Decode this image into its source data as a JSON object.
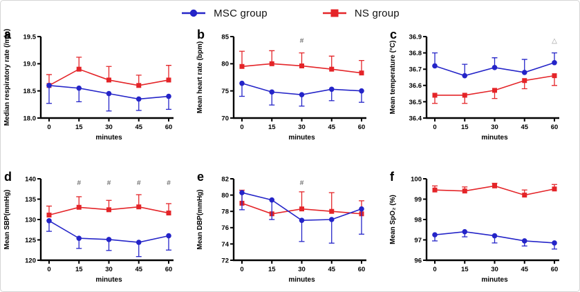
{
  "figure": {
    "background": "#ffffff",
    "border_color": "#d4d4d4"
  },
  "legend": {
    "items": [
      {
        "label": "MSC group",
        "color": "#2424c8",
        "marker": "circle"
      },
      {
        "label": "NS group",
        "color": "#e42428",
        "marker": "square"
      }
    ]
  },
  "chart_data": [
    {
      "panel_label": "a",
      "type": "line",
      "x": [
        0,
        15,
        30,
        45,
        60
      ],
      "xlabel": "minutes",
      "ylabel": "Median respiratory rate (/min)",
      "ylim": [
        18.0,
        19.5
      ],
      "yticks": [
        18.0,
        18.5,
        19.0,
        19.5
      ],
      "ytick_decimals": 1,
      "series": [
        {
          "name": "MSC group",
          "color": "#2424c8",
          "marker": "circle",
          "values": [
            18.6,
            18.55,
            18.45,
            18.35,
            18.4
          ],
          "err_lower": [
            18.27,
            18.3,
            18.13,
            18.14,
            18.16
          ]
        },
        {
          "name": "NS group",
          "color": "#e42428",
          "marker": "square",
          "values": [
            18.6,
            18.9,
            18.7,
            18.6,
            18.7
          ],
          "err_upper": [
            18.8,
            19.12,
            18.95,
            18.79,
            18.97
          ]
        }
      ],
      "annotations": []
    },
    {
      "panel_label": "b",
      "type": "line",
      "x": [
        0,
        15,
        30,
        45,
        60
      ],
      "xlabel": "minutes",
      "ylabel": "Mean heart rate (bpm)",
      "ylim": [
        70,
        85
      ],
      "yticks": [
        70,
        75,
        80,
        85
      ],
      "ytick_decimals": 0,
      "series": [
        {
          "name": "MSC group",
          "color": "#2424c8",
          "marker": "circle",
          "values": [
            76.4,
            74.8,
            74.3,
            75.3,
            75.0
          ],
          "err_lower": [
            74.0,
            72.4,
            72.2,
            73.2,
            72.9
          ]
        },
        {
          "name": "NS group",
          "color": "#e42428",
          "marker": "square",
          "values": [
            79.5,
            80.0,
            79.6,
            79.0,
            78.3
          ],
          "err_upper": [
            82.3,
            82.4,
            82.0,
            81.4,
            80.6
          ]
        }
      ],
      "annotations": [
        {
          "text": "#",
          "x": 30,
          "color": "#555555"
        }
      ]
    },
    {
      "panel_label": "c",
      "type": "line",
      "x": [
        0,
        15,
        30,
        45,
        60
      ],
      "xlabel": "minutes",
      "ylabel": "Mean temperature (°C)",
      "ylim": [
        36.4,
        36.9
      ],
      "yticks": [
        36.4,
        36.5,
        36.6,
        36.7,
        36.8,
        36.9
      ],
      "ytick_decimals": 1,
      "series": [
        {
          "name": "MSC group",
          "color": "#2424c8",
          "marker": "circle",
          "values": [
            36.72,
            36.66,
            36.71,
            36.68,
            36.74
          ],
          "err_upper": [
            36.8,
            36.73,
            36.77,
            36.76,
            36.8
          ]
        },
        {
          "name": "NS group",
          "color": "#e42428",
          "marker": "square",
          "values": [
            36.54,
            36.54,
            36.57,
            36.63,
            36.66
          ],
          "err_lower": [
            36.49,
            36.49,
            36.52,
            36.58,
            36.6
          ]
        }
      ],
      "annotations": [
        {
          "text": "△",
          "x": 60,
          "color": "#9a9a9a"
        }
      ]
    },
    {
      "panel_label": "d",
      "type": "line",
      "x": [
        0,
        15,
        30,
        45,
        60
      ],
      "xlabel": "minutes",
      "ylabel": "Mean SBP(mmHg)",
      "ylim": [
        120,
        140
      ],
      "yticks": [
        120,
        125,
        130,
        135,
        140
      ],
      "ytick_decimals": 0,
      "series": [
        {
          "name": "MSC group",
          "color": "#2424c8",
          "marker": "circle",
          "values": [
            129.7,
            125.4,
            125.1,
            124.4,
            126.0
          ],
          "err_lower": [
            127.1,
            122.9,
            122.4,
            120.9,
            122.5
          ]
        },
        {
          "name": "NS group",
          "color": "#e42428",
          "marker": "square",
          "values": [
            131.1,
            133.0,
            132.4,
            133.1,
            131.6
          ],
          "err_upper": [
            133.3,
            135.6,
            134.7,
            136.1,
            133.9
          ]
        }
      ],
      "annotations": [
        {
          "text": "#",
          "x": 15,
          "color": "#555555"
        },
        {
          "text": "#",
          "x": 30,
          "color": "#555555"
        },
        {
          "text": "#",
          "x": 45,
          "color": "#555555"
        },
        {
          "text": "#",
          "x": 60,
          "color": "#555555"
        }
      ]
    },
    {
      "panel_label": "e",
      "type": "line",
      "x": [
        0,
        15,
        30,
        45,
        60
      ],
      "xlabel": "minutes",
      "ylabel": "Mean DBP(mmHg)",
      "ylim": [
        72,
        82
      ],
      "yticks": [
        72,
        74,
        76,
        78,
        80,
        82
      ],
      "ytick_decimals": 0,
      "series": [
        {
          "name": "MSC group",
          "color": "#2424c8",
          "marker": "circle",
          "values": [
            80.3,
            79.4,
            76.9,
            77.0,
            78.3
          ],
          "err_lower": [
            78.2,
            77.0,
            74.3,
            74.1,
            75.2
          ]
        },
        {
          "name": "NS group",
          "color": "#e42428",
          "marker": "square",
          "values": [
            79.0,
            77.7,
            78.3,
            78.0,
            77.7
          ],
          "err_upper": [
            80.6,
            77.7,
            80.4,
            80.3,
            79.3
          ]
        }
      ],
      "annotations": [
        {
          "text": "#",
          "x": 30,
          "color": "#555555"
        }
      ]
    },
    {
      "panel_label": "f",
      "type": "line",
      "x": [
        0,
        15,
        30,
        45,
        60
      ],
      "xlabel": "minutes",
      "ylabel": "Mean SpO₂ (%)",
      "ylim": [
        96,
        100
      ],
      "yticks": [
        96,
        97,
        98,
        99,
        100
      ],
      "ytick_decimals": 0,
      "series": [
        {
          "name": "MSC group",
          "color": "#2424c8",
          "marker": "circle",
          "values": [
            97.25,
            97.4,
            97.2,
            96.95,
            96.85
          ],
          "err_lower": [
            96.95,
            97.15,
            96.85,
            96.7,
            96.55
          ]
        },
        {
          "name": "NS group",
          "color": "#e42428",
          "marker": "square",
          "values": [
            99.45,
            99.4,
            99.65,
            99.2,
            99.5
          ],
          "err_upper": [
            99.65,
            99.6,
            99.78,
            99.45,
            99.72
          ]
        }
      ],
      "annotations": []
    }
  ]
}
